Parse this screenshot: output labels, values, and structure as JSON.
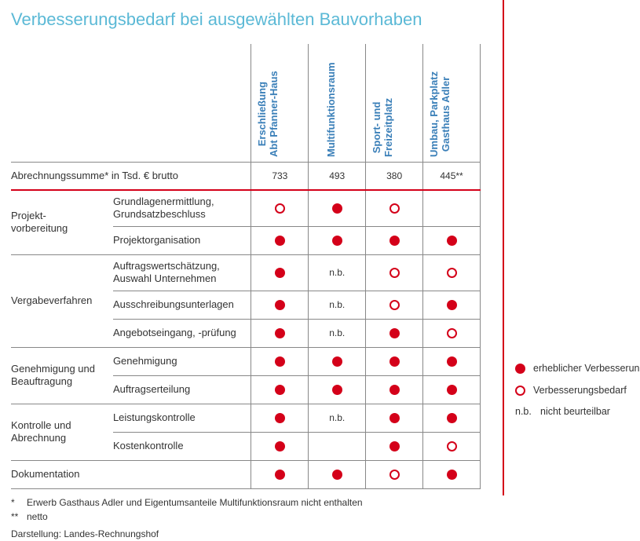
{
  "title": "Verbesserungsbedarf bei ausgewählten Bauvorhaben",
  "projects": [
    {
      "label_l1": "Erschließung",
      "label_l2": "Abt Pfanner-Haus",
      "sum": "733"
    },
    {
      "label_l1": "Multifunktionsraum",
      "label_l2": "",
      "sum": "493"
    },
    {
      "label_l1": "Sport- und",
      "label_l2": "Freizeitplatz",
      "sum": "380"
    },
    {
      "label_l1": "Umbau, Parkplatz",
      "label_l2": "Gasthaus Adler",
      "sum": "445**"
    }
  ],
  "sum_label": "Abrechnungssumme* in Tsd. € brutto",
  "groups": [
    {
      "category": "Projekt-\nvorbereitung",
      "rows": [
        {
          "label": "Grundlagenermittlung,\nGrundsatzbeschluss",
          "cells": [
            "hollow",
            "filled",
            "hollow",
            ""
          ]
        },
        {
          "label": "Projektorganisation",
          "cells": [
            "filled",
            "filled",
            "filled",
            "filled"
          ]
        }
      ]
    },
    {
      "category": "Vergabeverfahren",
      "rows": [
        {
          "label": "Auftragswertschätzung,\nAuswahl Unternehmen",
          "cells": [
            "filled",
            "nb",
            "hollow",
            "hollow"
          ]
        },
        {
          "label": "Ausschreibungsunterlagen",
          "cells": [
            "filled",
            "nb",
            "hollow",
            "filled"
          ]
        },
        {
          "label": "Angebotseingang, -prüfung",
          "cells": [
            "filled",
            "nb",
            "filled",
            "hollow"
          ]
        }
      ]
    },
    {
      "category": "Genehmigung und\nBeauftragung",
      "rows": [
        {
          "label": "Genehmigung",
          "cells": [
            "filled",
            "filled",
            "filled",
            "filled"
          ]
        },
        {
          "label": "Auftragserteilung",
          "cells": [
            "filled",
            "filled",
            "filled",
            "filled"
          ]
        }
      ]
    },
    {
      "category": "Kontrolle und\nAbrechnung",
      "rows": [
        {
          "label": "Leistungskontrolle",
          "cells": [
            "filled",
            "nb",
            "filled",
            "filled"
          ]
        },
        {
          "label": "Kostenkontrolle",
          "cells": [
            "filled",
            "",
            "filled",
            "hollow"
          ]
        }
      ]
    },
    {
      "category": "Dokumentation",
      "rows": [
        {
          "label": "",
          "cells": [
            "filled",
            "filled",
            "hollow",
            "filled"
          ]
        }
      ]
    }
  ],
  "nb_text": "n.b.",
  "footnotes": {
    "f1_mark": "*",
    "f1_text": "Erwerb Gasthaus Adler und Eigentumsanteile Multifunktionsraum nicht enthalten",
    "f2_mark": "**",
    "f2_text": "netto",
    "source": "Darstellung: Landes-Rechnungshof"
  },
  "legend": {
    "filled": "erheblicher Verbesserungsbedarf",
    "hollow": "Verbesserungsbedarf",
    "nb_mark": "n.b.",
    "nb_text": "nicht beurteilbar"
  },
  "colors": {
    "title": "#5bb9d6",
    "header_text": "#3a7fb8",
    "accent": "#d40019",
    "rule": "#888888",
    "text": "#333333",
    "background": "#ffffff"
  }
}
